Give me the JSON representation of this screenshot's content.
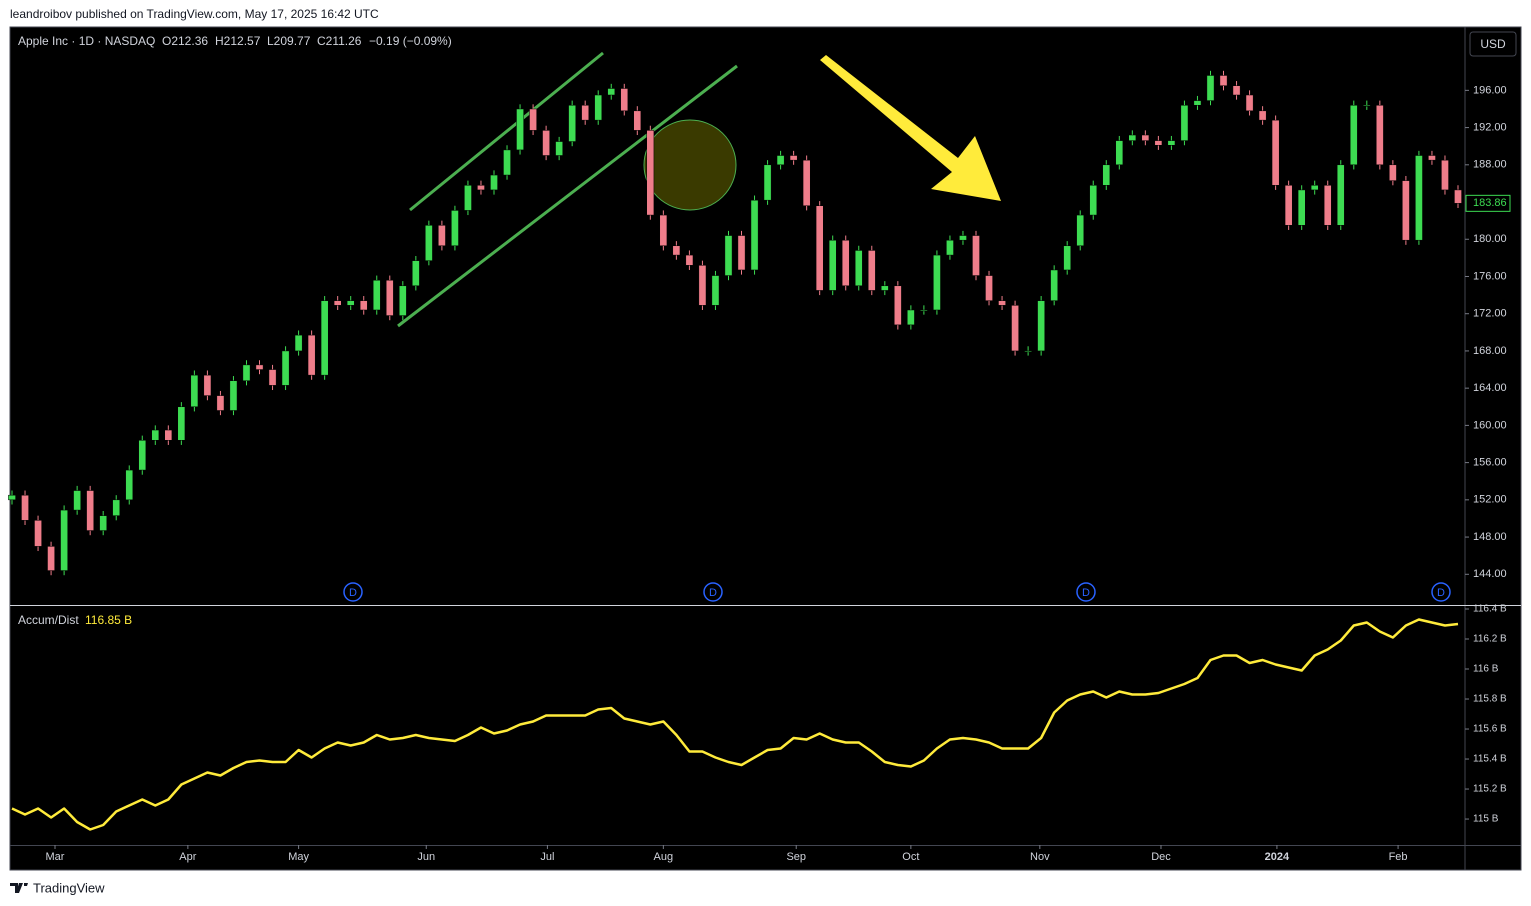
{
  "header": {
    "publisher": "leandroibov published on TradingView.com, May 17, 2025 16:42 UTC"
  },
  "footer": {
    "brand": "TradingView"
  },
  "chart_data": [
    {
      "type": "candlestick",
      "title": "Apple Inc · 1D · NASDAQ",
      "ohlc_labels": [
        "O212.36",
        "H212.57",
        "L209.77",
        "C211.26"
      ],
      "change_label": "−0.19 (−0.09%)",
      "currency": "USD",
      "markers": [
        "D",
        "D",
        "D",
        "D"
      ],
      "up_color": "#3ddc52",
      "down_color": "#ef7d8a",
      "xlim": [
        0,
        111
      ],
      "ylim": [
        140.7,
        202.7
      ],
      "yticks": [
        {
          "value": 144,
          "label": "144.00"
        },
        {
          "value": 148,
          "label": "148.00"
        },
        {
          "value": 152,
          "label": "152.00"
        },
        {
          "value": 156,
          "label": "156.00"
        },
        {
          "value": 160,
          "label": "160.00"
        },
        {
          "value": 164,
          "label": "164.00"
        },
        {
          "value": 168,
          "label": "168.00"
        },
        {
          "value": 172,
          "label": "172.00"
        },
        {
          "value": 176,
          "label": "176.00"
        },
        {
          "value": 180,
          "label": "180.00"
        },
        {
          "value": 188,
          "label": "188.00"
        },
        {
          "value": 192,
          "label": "192.00"
        },
        {
          "value": 196,
          "label": "196.00"
        }
      ],
      "open": [
        152.0,
        152.5,
        149.8,
        147.0,
        144.4,
        150.9,
        153.0,
        148.7,
        150.3,
        152.0,
        155.2,
        158.4,
        159.5,
        158.4,
        162.0,
        165.4,
        163.2,
        161.6,
        164.8,
        166.5,
        166.0,
        164.3,
        168.0,
        169.7,
        165.4,
        173.4,
        172.9,
        173.4,
        172.4,
        175.6,
        171.8,
        175.0,
        177.7,
        181.5,
        179.3,
        183.1,
        185.8,
        185.3,
        186.9,
        189.6,
        194.0,
        191.7,
        189.0,
        190.5,
        194.4,
        192.8,
        195.5,
        196.2,
        193.8,
        191.7,
        182.6,
        179.3,
        178.3,
        177.2,
        172.9,
        176.1,
        180.4,
        176.7,
        184.2,
        188.0,
        189.0,
        188.5,
        183.6,
        174.5,
        179.9,
        175.0,
        178.8,
        174.5,
        175.0,
        170.8,
        172.4,
        172.4,
        178.3,
        179.9,
        180.4,
        176.1,
        173.4,
        172.9,
        168.0,
        168.0,
        173.4,
        176.7,
        179.3,
        182.6,
        185.8,
        188.0,
        190.6,
        191.2,
        190.6,
        190.1,
        190.6,
        194.4,
        194.9,
        197.6,
        196.5,
        195.5,
        193.8,
        192.8,
        185.8,
        181.5,
        185.3,
        185.8,
        181.5,
        188.0,
        194.4,
        194.4,
        188.0,
        186.3,
        179.9,
        189.0,
        188.5,
        185.3
      ],
      "high": [
        153.0,
        153.0,
        150.3,
        147.5,
        151.4,
        153.5,
        153.5,
        150.8,
        152.5,
        155.7,
        158.9,
        160.0,
        160.0,
        162.5,
        165.9,
        165.9,
        163.7,
        165.3,
        167.0,
        167.0,
        166.5,
        168.5,
        170.2,
        170.2,
        173.9,
        173.9,
        173.9,
        173.9,
        176.1,
        176.1,
        175.5,
        178.2,
        182.0,
        182.0,
        183.6,
        186.3,
        186.3,
        187.4,
        190.1,
        194.5,
        194.5,
        192.2,
        191.0,
        194.9,
        194.9,
        196.0,
        196.7,
        196.7,
        194.3,
        192.2,
        183.1,
        179.8,
        178.8,
        177.7,
        176.6,
        180.9,
        180.9,
        184.7,
        188.5,
        189.5,
        189.5,
        189.0,
        184.1,
        180.4,
        180.4,
        179.3,
        179.3,
        175.5,
        175.5,
        172.9,
        172.9,
        178.8,
        180.4,
        180.9,
        180.9,
        176.6,
        173.9,
        173.4,
        168.5,
        173.9,
        177.2,
        179.8,
        183.1,
        186.3,
        188.5,
        191.1,
        191.7,
        191.7,
        191.1,
        191.1,
        194.9,
        195.4,
        198.1,
        198.1,
        197.0,
        196.0,
        194.3,
        193.3,
        186.3,
        185.8,
        186.3,
        186.3,
        188.5,
        194.9,
        194.9,
        194.9,
        188.5,
        186.8,
        189.5,
        189.5,
        189.0,
        185.8
      ],
      "low": [
        151.5,
        149.3,
        146.5,
        143.9,
        143.9,
        150.4,
        148.2,
        148.2,
        149.8,
        151.5,
        154.7,
        157.9,
        157.9,
        157.9,
        161.5,
        162.7,
        161.1,
        161.1,
        164.3,
        165.5,
        163.8,
        163.8,
        167.5,
        164.9,
        164.9,
        172.4,
        172.4,
        171.9,
        171.9,
        171.3,
        171.3,
        174.5,
        177.2,
        178.8,
        178.8,
        182.6,
        184.8,
        184.8,
        186.4,
        189.1,
        191.2,
        188.5,
        188.5,
        190.0,
        192.3,
        192.3,
        195.0,
        193.3,
        191.2,
        182.1,
        178.8,
        177.8,
        176.7,
        172.4,
        172.4,
        175.6,
        176.2,
        176.2,
        183.7,
        187.5,
        188.0,
        183.1,
        174.0,
        174.0,
        174.5,
        174.5,
        174.0,
        174.0,
        170.3,
        170.3,
        171.9,
        171.9,
        177.8,
        179.4,
        175.6,
        172.9,
        172.4,
        167.5,
        167.5,
        167.5,
        172.9,
        176.2,
        178.8,
        182.1,
        185.3,
        187.5,
        190.1,
        190.1,
        189.6,
        189.6,
        190.1,
        193.9,
        194.4,
        196.0,
        195.0,
        193.3,
        192.3,
        185.3,
        181.0,
        181.0,
        184.8,
        181.0,
        181.0,
        187.5,
        193.9,
        187.5,
        185.8,
        179.4,
        179.4,
        188.0,
        184.8,
        183.36
      ],
      "close": [
        152.5,
        149.8,
        147.0,
        144.4,
        150.9,
        153.0,
        148.7,
        150.3,
        152.0,
        155.2,
        158.4,
        159.5,
        158.4,
        162.0,
        165.4,
        163.2,
        161.6,
        164.8,
        166.5,
        166.0,
        164.3,
        168.0,
        169.7,
        165.4,
        173.4,
        172.9,
        173.4,
        172.4,
        175.6,
        171.8,
        175.0,
        177.7,
        181.5,
        179.3,
        183.1,
        185.8,
        185.3,
        186.9,
        189.6,
        194.0,
        191.7,
        189.0,
        190.5,
        194.4,
        192.8,
        195.5,
        196.2,
        193.8,
        191.7,
        182.6,
        179.3,
        178.3,
        177.2,
        172.9,
        176.1,
        180.4,
        176.7,
        184.2,
        188.0,
        189.0,
        188.5,
        183.6,
        174.5,
        179.9,
        175.0,
        178.8,
        174.5,
        175.0,
        170.8,
        172.4,
        172.4,
        178.3,
        179.9,
        180.4,
        176.1,
        173.4,
        172.9,
        168.0,
        168.0,
        173.4,
        176.7,
        179.3,
        182.6,
        185.8,
        188.0,
        190.6,
        191.2,
        190.6,
        190.1,
        190.6,
        194.4,
        194.9,
        197.6,
        196.5,
        195.5,
        193.8,
        192.8,
        185.8,
        181.5,
        185.3,
        185.8,
        181.5,
        188.0,
        194.4,
        194.4,
        188.0,
        186.3,
        179.9,
        189.0,
        188.5,
        185.3,
        183.86
      ]
    },
    {
      "type": "line",
      "title": "Accum/Dist",
      "last_label": "116.85 B",
      "color": "#ffeb3b",
      "xlim": [
        0,
        111
      ],
      "ylim": [
        114.827,
        116.42
      ],
      "xticks": [
        {
          "value": 3.3,
          "label": "Mar"
        },
        {
          "value": 13.5,
          "label": "Apr"
        },
        {
          "value": 22,
          "label": "May"
        },
        {
          "value": 31.8,
          "label": "Jun"
        },
        {
          "value": 41.1,
          "label": "Jul"
        },
        {
          "value": 50,
          "label": "Aug"
        },
        {
          "value": 60.2,
          "label": "Sep"
        },
        {
          "value": 69,
          "label": "Oct"
        },
        {
          "value": 78.9,
          "label": "Nov"
        },
        {
          "value": 88.2,
          "label": "Dec"
        },
        {
          "value": 97.1,
          "label": "2024"
        },
        {
          "value": 106.4,
          "label": "Feb"
        }
      ],
      "yticks": [
        {
          "value": 115,
          "label": "115 B"
        },
        {
          "value": 115.2,
          "label": "115.2 B"
        },
        {
          "value": 115.4,
          "label": "115.4 B"
        },
        {
          "value": 115.6,
          "label": "115.6 B"
        },
        {
          "value": 115.8,
          "label": "115.8 B"
        },
        {
          "value": 116,
          "label": "116 B"
        },
        {
          "value": 116.2,
          "label": "116.2 B"
        },
        {
          "value": 116.4,
          "label": "116.4 B"
        }
      ],
      "values": [
        115.07,
        115.03,
        115.07,
        115.01,
        115.07,
        114.98,
        114.93,
        114.96,
        115.05,
        115.09,
        115.13,
        115.09,
        115.13,
        115.23,
        115.27,
        115.31,
        115.29,
        115.34,
        115.38,
        115.39,
        115.38,
        115.38,
        115.46,
        115.41,
        115.47,
        115.51,
        115.49,
        115.51,
        115.56,
        115.53,
        115.54,
        115.56,
        115.54,
        115.53,
        115.52,
        115.56,
        115.61,
        115.57,
        115.59,
        115.63,
        115.65,
        115.69,
        115.69,
        115.69,
        115.69,
        115.73,
        115.74,
        115.67,
        115.65,
        115.63,
        115.65,
        115.56,
        115.45,
        115.45,
        115.41,
        115.38,
        115.36,
        115.41,
        115.46,
        115.47,
        115.54,
        115.53,
        115.57,
        115.53,
        115.51,
        115.51,
        115.45,
        115.38,
        115.36,
        115.35,
        115.39,
        115.47,
        115.53,
        115.54,
        115.53,
        115.51,
        115.47,
        115.47,
        115.47,
        115.54,
        115.71,
        115.79,
        115.83,
        115.85,
        115.81,
        115.85,
        115.83,
        115.83,
        115.84,
        115.87,
        115.9,
        115.94,
        116.06,
        116.09,
        116.09,
        116.04,
        116.06,
        116.03,
        116.01,
        115.99,
        116.09,
        116.13,
        116.19,
        116.29,
        116.31,
        116.25,
        116.21,
        116.29,
        116.33,
        116.31,
        116.29,
        116.3
      ]
    }
  ]
}
